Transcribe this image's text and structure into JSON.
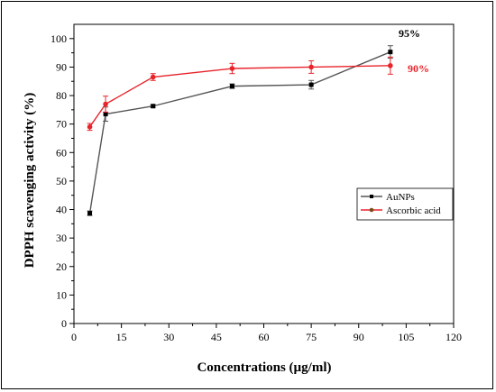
{
  "chart_data": {
    "type": "line",
    "xlabel": "Concentrations (µg/ml)",
    "ylabel": "DPPH scavenging activity (%)",
    "xlim": [
      0,
      120
    ],
    "ylim": [
      0,
      105
    ],
    "xticks": [
      0,
      15,
      30,
      45,
      60,
      75,
      90,
      105,
      120
    ],
    "yticks": [
      0,
      10,
      20,
      30,
      40,
      50,
      60,
      70,
      80,
      90,
      100
    ],
    "grid": false,
    "legend_position": "middle-right",
    "series": [
      {
        "name": "AuNPs",
        "color": "#555555",
        "marker_color": "#000000",
        "x": [
          5,
          10,
          25,
          50,
          75,
          100
        ],
        "y": [
          38.7,
          73.5,
          76.3,
          83.3,
          83.8,
          95.3
        ],
        "err": [
          0.8,
          2.5,
          0.5,
          0.8,
          1.5,
          2.2
        ]
      },
      {
        "name": "Ascorbic acid",
        "color": "#e8242b",
        "marker_color": "#e8242b",
        "x": [
          5,
          10,
          25,
          50,
          75,
          100
        ],
        "y": [
          69.0,
          77.0,
          86.5,
          89.5,
          90.0,
          90.5
        ],
        "err": [
          1.2,
          2.8,
          1.2,
          1.8,
          2.2,
          3.0
        ]
      }
    ],
    "annotations": [
      {
        "text": "95%",
        "color": "#000000"
      },
      {
        "text": "90%",
        "color": "#e8242b"
      }
    ]
  }
}
